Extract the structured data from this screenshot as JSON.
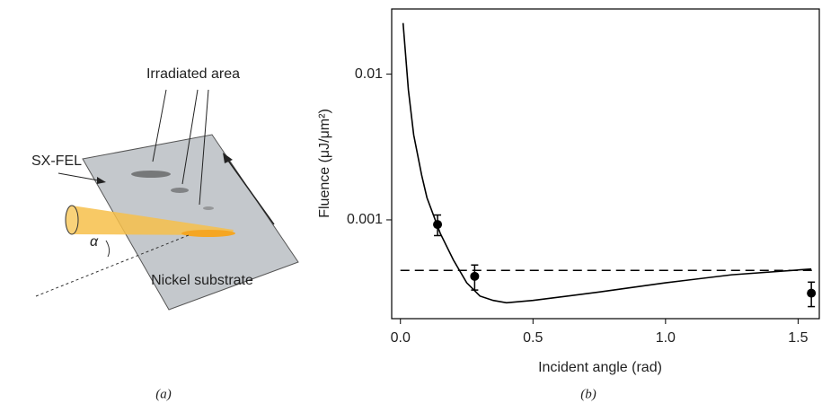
{
  "diagram": {
    "labels": {
      "irradiated": "Irradiated area",
      "source": "SX-FEL",
      "angle": "α",
      "substrate": "Nickel substrate"
    },
    "caption": "(a)"
  },
  "chart_data": {
    "type": "line",
    "caption": "(b)",
    "x_label": "Incident angle (rad)",
    "y_label": "Fluence (μJ/μm²)",
    "xlim": [
      -0.033,
      1.58
    ],
    "xticks": [
      {
        "value": 0,
        "label": "0.0"
      },
      {
        "value": 0.5,
        "label": "0.5"
      },
      {
        "value": 1,
        "label": "1.0"
      },
      {
        "value": 1.5,
        "label": "1.5"
      }
    ],
    "ylim": [
      0.00021,
      0.028
    ],
    "yticks": [
      0.001,
      0.01
    ],
    "log_y": true,
    "series": [
      {
        "type": "line",
        "color": "#000000",
        "x": [
          0.01,
          0.03,
          0.05,
          0.08,
          0.1,
          0.15,
          0.2,
          0.25,
          0.3,
          0.35,
          0.4,
          0.5,
          0.75,
          1.0,
          1.25,
          1.55
        ],
        "values": [
          0.0224,
          0.0078,
          0.00383,
          0.00203,
          0.00142,
          0.00081,
          0.00053,
          0.00037,
          0.0003,
          0.00028,
          0.00027,
          0.00028,
          0.00032,
          0.00037,
          0.00042,
          0.00046
        ]
      },
      {
        "type": "scatter",
        "color": "#000000",
        "x": [
          0.14,
          0.28,
          1.55
        ],
        "values": [
          0.00093,
          0.00041,
          0.000314
        ],
        "errors": [
          0.00015,
          8e-05,
          6e-05
        ]
      },
      {
        "type": "hline",
        "color": "#000000",
        "dashed": true,
        "x": [
          0.0,
          1.56
        ],
        "value": 0.00045
      }
    ]
  }
}
